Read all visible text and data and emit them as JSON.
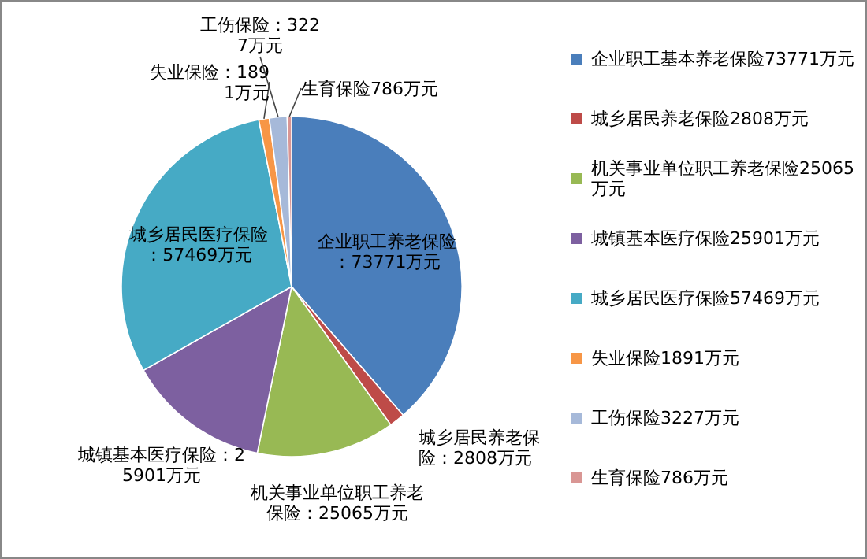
{
  "chart_data": {
    "type": "pie",
    "legend": "right",
    "categories": [
      "企业职工基本养老保险73771万元",
      "城乡居民养老保险2808万元",
      "机关事业单位职工养老保险25065万元",
      "城镇基本医疗保险25901万元",
      "城乡居民医疗保险57469万元",
      "失业保险1891万元",
      "工伤保险3227万元",
      "生育保险786万元"
    ],
    "values": [
      73771,
      2808,
      25065,
      25901,
      57469,
      1891,
      3227,
      786
    ],
    "colors": [
      "#4a7ebb",
      "#be4b48",
      "#98b954",
      "#7d60a0",
      "#46aac5",
      "#f79646",
      "#a6b9d9",
      "#d99694"
    ],
    "value_labels": [
      "企业职工养老保险：73771万元",
      "城乡居民养老保险：2808万元",
      "机关事业单位职工养老保险：25065万元",
      "城镇基本医疗保险：25901万元",
      "城乡居民医疗保险：57469万元",
      "失业保险：1891万元",
      "工伤保险：3227万元",
      "生育保险786万元"
    ]
  }
}
